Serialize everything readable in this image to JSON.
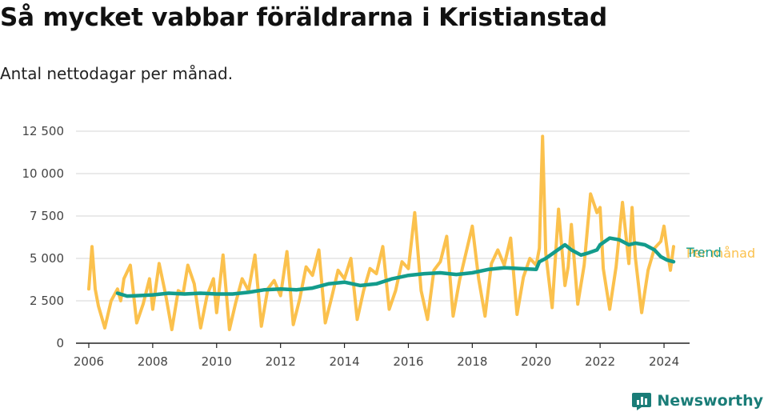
{
  "title": "Så mycket vabbar föräldrarna i Kristianstad",
  "subtitle": "Antal nettodagar per månad.",
  "brand": "Newsworthy",
  "colors": {
    "per_month": "#fbc14d",
    "trend": "#139c8c",
    "grid": "#dddddd",
    "axis": "#222222",
    "brand": "#1a7d78"
  },
  "icons": {
    "brand_logo": "newsworthy-chart-bubble-icon"
  },
  "chart_data": {
    "type": "line",
    "title": "Så mycket vabbar föräldrarna i Kristianstad",
    "subtitle": "Antal nettodagar per månad.",
    "xlabel": "",
    "ylabel": "",
    "xlim": [
      2005.6,
      2024.8
    ],
    "ylim": [
      0,
      12500
    ],
    "x_ticks": [
      2006,
      2008,
      2010,
      2012,
      2014,
      2016,
      2018,
      2020,
      2022,
      2024
    ],
    "x_tick_labels": [
      "2006",
      "2008",
      "2010",
      "2012",
      "2014",
      "2016",
      "2018",
      "2020",
      "2022",
      "2024"
    ],
    "y_ticks": [
      0,
      2500,
      5000,
      7500,
      10000,
      12500
    ],
    "y_tick_labels": [
      "0",
      "2 500",
      "5 000",
      "7 500",
      "10 000",
      "12 500"
    ],
    "grid": true,
    "legend": "inline-right",
    "series": [
      {
        "name": "Per månad",
        "color": "#fbc14d",
        "x": [
          2006.0,
          2006.1,
          2006.2,
          2006.3,
          2006.5,
          2006.7,
          2006.9,
          2007.0,
          2007.1,
          2007.3,
          2007.5,
          2007.7,
          2007.9,
          2008.0,
          2008.2,
          2008.4,
          2008.6,
          2008.8,
          2008.95,
          2009.1,
          2009.3,
          2009.5,
          2009.7,
          2009.9,
          2010.0,
          2010.2,
          2010.4,
          2010.6,
          2010.8,
          2011.0,
          2011.2,
          2011.4,
          2011.6,
          2011.8,
          2012.0,
          2012.2,
          2012.4,
          2012.6,
          2012.8,
          2013.0,
          2013.2,
          2013.4,
          2013.6,
          2013.8,
          2014.0,
          2014.2,
          2014.4,
          2014.6,
          2014.8,
          2015.0,
          2015.2,
          2015.4,
          2015.6,
          2015.8,
          2016.0,
          2016.2,
          2016.4,
          2016.6,
          2016.8,
          2017.0,
          2017.2,
          2017.4,
          2017.6,
          2017.8,
          2018.0,
          2018.2,
          2018.4,
          2018.6,
          2018.8,
          2019.0,
          2019.2,
          2019.4,
          2019.6,
          2019.8,
          2020.0,
          2020.1,
          2020.2,
          2020.3,
          2020.5,
          2020.7,
          2020.9,
          2021.0,
          2021.1,
          2021.3,
          2021.5,
          2021.7,
          2021.9,
          2022.0,
          2022.1,
          2022.3,
          2022.5,
          2022.7,
          2022.9,
          2023.0,
          2023.1,
          2023.3,
          2023.5,
          2023.7,
          2023.9,
          2024.0,
          2024.1,
          2024.2,
          2024.3
        ],
        "y": [
          3200,
          5700,
          3200,
          2200,
          900,
          2500,
          3200,
          2500,
          3800,
          4600,
          1200,
          2300,
          3800,
          2000,
          4700,
          2900,
          800,
          3100,
          2900,
          4600,
          3500,
          900,
          2800,
          3800,
          1800,
          5200,
          800,
          2400,
          3800,
          3100,
          5200,
          1000,
          3200,
          3700,
          2800,
          5400,
          1100,
          2600,
          4500,
          4000,
          5500,
          1200,
          2700,
          4300,
          3800,
          5000,
          1400,
          3100,
          4400,
          4100,
          5700,
          2000,
          3100,
          4800,
          4400,
          7700,
          3100,
          1400,
          4300,
          4800,
          6300,
          1600,
          3700,
          5300,
          6900,
          3800,
          1600,
          4700,
          5500,
          4600,
          6200,
          1700,
          3900,
          5000,
          4600,
          5600,
          12200,
          5300,
          2100,
          7900,
          3400,
          4500,
          7000,
          2300,
          4600,
          8800,
          7700,
          8000,
          4400,
          2000,
          4500,
          8300,
          4700,
          8000,
          5100,
          1800,
          4300,
          5600,
          6000,
          6900,
          5500,
          4300,
          5700
        ]
      },
      {
        "name": "Trend",
        "color": "#139c8c",
        "x": [
          2006.9,
          2007.2,
          2007.5,
          2008.0,
          2008.5,
          2009.0,
          2009.5,
          2010.0,
          2010.5,
          2011.0,
          2011.5,
          2012.0,
          2012.5,
          2013.0,
          2013.5,
          2014.0,
          2014.5,
          2015.0,
          2015.5,
          2016.0,
          2016.5,
          2017.0,
          2017.5,
          2018.0,
          2018.5,
          2019.0,
          2019.5,
          2020.0,
          2020.1,
          2020.3,
          2020.6,
          2020.9,
          2021.1,
          2021.4,
          2021.6,
          2021.9,
          2022.0,
          2022.3,
          2022.6,
          2022.9,
          2023.1,
          2023.4,
          2023.7,
          2023.9,
          2024.1,
          2024.3
        ],
        "y": [
          2950,
          2780,
          2800,
          2850,
          2950,
          2900,
          2950,
          2900,
          2900,
          3000,
          3150,
          3200,
          3150,
          3250,
          3500,
          3600,
          3400,
          3500,
          3800,
          4000,
          4100,
          4150,
          4050,
          4150,
          4350,
          4450,
          4400,
          4350,
          4800,
          5000,
          5400,
          5800,
          5500,
          5200,
          5300,
          5500,
          5800,
          6200,
          6100,
          5800,
          5900,
          5800,
          5500,
          5100,
          4900,
          4800
        ]
      }
    ]
  }
}
